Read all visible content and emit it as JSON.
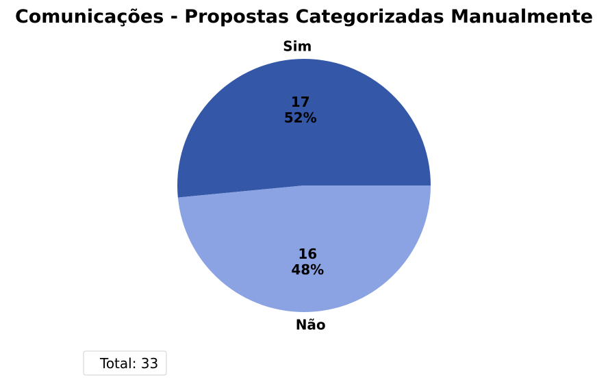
{
  "chart_data": {
    "type": "pie",
    "title": "Comunicações - Propostas Categorizadas Manualmente",
    "slices": [
      {
        "label": "Sim",
        "value": 17,
        "percent": "52%",
        "color": "#3457a8"
      },
      {
        "label": "Não",
        "value": 16,
        "percent": "48%",
        "color": "#8ba3e2"
      }
    ],
    "start_angle_deg": 0,
    "direction": "counterclockwise",
    "legend": {
      "text": "Total: 33",
      "placement": "lower-left"
    }
  }
}
